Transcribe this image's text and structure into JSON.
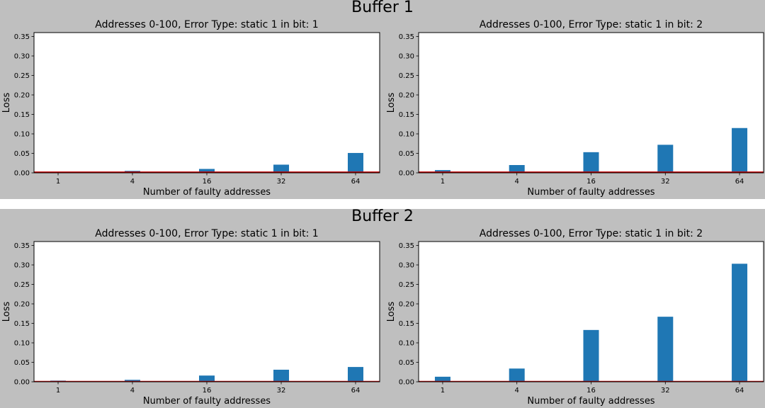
{
  "figures": [
    {
      "suptitle": "Buffer 1"
    },
    {
      "suptitle": "Buffer 2"
    }
  ],
  "colors": {
    "bar": "#1f77b4",
    "baseline": "#c00000",
    "figure_bg": "#bfbfbf"
  },
  "chart_data": [
    {
      "type": "bar",
      "figure": "Buffer 1",
      "title": "Addresses 0-100, Error Type: static 1 in bit: 1",
      "xlabel": "Number of faulty addresses",
      "ylabel": "Loss",
      "categories": [
        "1",
        "4",
        "16",
        "32",
        "64"
      ],
      "values": [
        0.002,
        0.005,
        0.01,
        0.021,
        0.051
      ],
      "ylim": [
        0,
        0.36
      ],
      "yticks": [
        "0.00",
        "0.05",
        "0.10",
        "0.15",
        "0.20",
        "0.25",
        "0.30",
        "0.35"
      ],
      "baseline": 0.002
    },
    {
      "type": "bar",
      "figure": "Buffer 1",
      "title": "Addresses 0-100, Error Type: static 1 in bit: 2",
      "xlabel": "Number of faulty addresses",
      "ylabel": "Loss",
      "categories": [
        "1",
        "4",
        "16",
        "32",
        "64"
      ],
      "values": [
        0.007,
        0.02,
        0.053,
        0.072,
        0.115
      ],
      "ylim": [
        0,
        0.36
      ],
      "yticks": [
        "0.00",
        "0.05",
        "0.10",
        "0.15",
        "0.20",
        "0.25",
        "0.30",
        "0.35"
      ],
      "baseline": 0.002
    },
    {
      "type": "bar",
      "figure": "Buffer 2",
      "title": "Addresses 0-100, Error Type: static 1 in bit: 1",
      "xlabel": "Number of faulty addresses",
      "ylabel": "Loss",
      "categories": [
        "1",
        "4",
        "16",
        "32",
        "64"
      ],
      "values": [
        0.003,
        0.005,
        0.016,
        0.031,
        0.038
      ],
      "ylim": [
        0,
        0.36
      ],
      "yticks": [
        "0.00",
        "0.05",
        "0.10",
        "0.15",
        "0.20",
        "0.25",
        "0.30",
        "0.35"
      ],
      "baseline": 0.001
    },
    {
      "type": "bar",
      "figure": "Buffer 2",
      "title": "Addresses 0-100, Error Type: static 1 in bit: 2",
      "xlabel": "Number of faulty addresses",
      "ylabel": "Loss",
      "categories": [
        "1",
        "4",
        "16",
        "32",
        "64"
      ],
      "values": [
        0.013,
        0.034,
        0.133,
        0.167,
        0.303
      ],
      "ylim": [
        0,
        0.36
      ],
      "yticks": [
        "0.00",
        "0.05",
        "0.10",
        "0.15",
        "0.20",
        "0.25",
        "0.30",
        "0.35"
      ],
      "baseline": 0.001
    }
  ]
}
